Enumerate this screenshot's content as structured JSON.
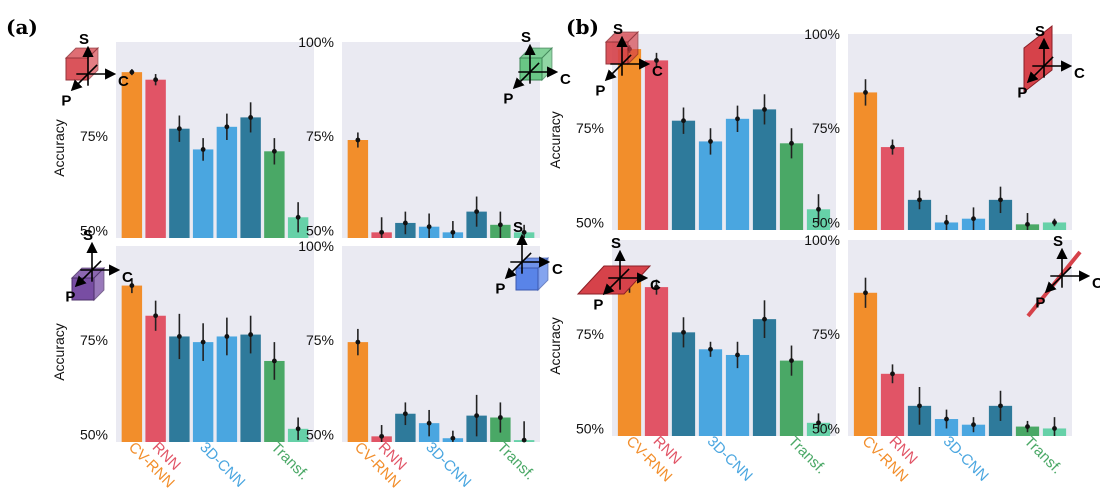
{
  "panel_labels": [
    "(a)",
    "(b)"
  ],
  "icon_axis_labels": {
    "s": "S",
    "c": "C",
    "p": "P"
  },
  "colors": {
    "CV-RNN": "#f28e2b",
    "RNN": "#e15466",
    "3D-CNN-dark": "#2e7a9b",
    "3D-CNN-light": "#4aa6e0",
    "Transf.": "#4aa866",
    "Transf.-light": "#66d1a8",
    "icon_red": "#d6424a",
    "icon_green": "#5cc47a",
    "icon_purple": "#6a3a9a",
    "icon_blue": "#4a7ae8"
  },
  "category_labels": [
    {
      "text": "CV-RNN",
      "color": "#f28e2b"
    },
    {
      "text": "RNN",
      "color": "#e15466"
    },
    {
      "text": "3D-CNN",
      "color": "#4aa6e0"
    },
    {
      "text": "Transf.",
      "color": "#4aa866"
    }
  ],
  "chart_data": [
    {
      "id": "a-top-left",
      "type": "bar",
      "ylabel": "Accuracy",
      "ylim": [
        48,
        100
      ],
      "yticks": [
        {
          "v": 50,
          "label": "50%"
        },
        {
          "v": 75,
          "label": "75%"
        }
      ],
      "icon": "cube-red",
      "values": [
        92,
        90,
        77,
        71.5,
        77.5,
        80,
        71,
        53.5
      ],
      "errors": [
        0.8,
        1.5,
        3.5,
        3,
        3.5,
        4,
        3.5,
        4
      ]
    },
    {
      "id": "a-top-right",
      "type": "bar",
      "ylabel": "",
      "ylim": [
        48,
        100
      ],
      "yticks": [
        {
          "v": 50,
          "label": "50%"
        },
        {
          "v": 75,
          "label": "75%"
        },
        {
          "v": 100,
          "label": "100%"
        }
      ],
      "icon": "cube-green",
      "values": [
        74,
        49.5,
        52,
        51,
        49.5,
        55,
        51.5,
        49.5
      ],
      "errors": [
        2,
        4,
        3,
        3.5,
        3,
        4,
        3.5,
        2
      ]
    },
    {
      "id": "a-bottom-left",
      "type": "bar",
      "ylabel": "Accuracy",
      "ylim": [
        48,
        100
      ],
      "yticks": [
        {
          "v": 50,
          "label": "50%"
        },
        {
          "v": 75,
          "label": "75%"
        }
      ],
      "icon": "cube-purple",
      "values": [
        89.5,
        81.5,
        76,
        74.5,
        76,
        76.5,
        69.5,
        51.5
      ],
      "errors": [
        2,
        4,
        6,
        5,
        5,
        5,
        5,
        3
      ]
    },
    {
      "id": "a-bottom-right",
      "type": "bar",
      "ylabel": "",
      "ylim": [
        48,
        100
      ],
      "yticks": [
        {
          "v": 50,
          "label": "50%"
        },
        {
          "v": 75,
          "label": "75%"
        },
        {
          "v": 100,
          "label": "100%"
        }
      ],
      "icon": "cube-blue",
      "values": [
        74.5,
        49.5,
        55.5,
        53,
        49,
        55,
        54.5,
        48.5
      ],
      "errors": [
        3.5,
        3,
        3,
        3.5,
        2,
        5.5,
        4,
        5
      ]
    },
    {
      "id": "b-top-left",
      "type": "bar",
      "ylabel": "Accuracy",
      "ylim": [
        48,
        100
      ],
      "yticks": [
        {
          "v": 50,
          "label": "50%"
        },
        {
          "v": 75,
          "label": "75%"
        }
      ],
      "icon": "cube-red-p",
      "values": [
        96,
        93,
        77,
        71.5,
        77.5,
        80,
        71,
        53.5
      ],
      "errors": [
        1,
        2,
        3.5,
        3.5,
        3.5,
        4,
        4,
        4
      ]
    },
    {
      "id": "b-top-right",
      "type": "bar",
      "ylabel": "",
      "ylim": [
        48,
        100
      ],
      "yticks": [
        {
          "v": 50,
          "label": "50%"
        },
        {
          "v": 75,
          "label": "75%"
        },
        {
          "v": 100,
          "label": "100%"
        }
      ],
      "icon": "plane-vertical",
      "values": [
        84.5,
        70,
        56,
        50,
        51,
        56,
        49.5,
        50
      ],
      "errors": [
        3.5,
        2,
        2.5,
        2,
        3,
        3.5,
        3,
        1
      ]
    },
    {
      "id": "b-bottom-left",
      "type": "bar",
      "ylabel": "Accuracy",
      "ylim": [
        48,
        100
      ],
      "yticks": [
        {
          "v": 50,
          "label": "50%"
        },
        {
          "v": 75,
          "label": "75%"
        }
      ],
      "icon": "plane-horizontal",
      "values": [
        89,
        87.5,
        75.5,
        71,
        69.5,
        79,
        68,
        51.5
      ],
      "errors": [
        3,
        2,
        4,
        2,
        3.5,
        5,
        4,
        2.5
      ]
    },
    {
      "id": "b-bottom-right",
      "type": "bar",
      "ylabel": "",
      "ylim": [
        48,
        100
      ],
      "yticks": [
        {
          "v": 50,
          "label": "50%"
        },
        {
          "v": 75,
          "label": "75%"
        },
        {
          "v": 100,
          "label": "100%"
        }
      ],
      "icon": "line-diagonal",
      "values": [
        86,
        64.5,
        56,
        52.5,
        51,
        56,
        50.5,
        50
      ],
      "errors": [
        4,
        2.5,
        5,
        2.5,
        2,
        4,
        1.5,
        3
      ]
    }
  ]
}
